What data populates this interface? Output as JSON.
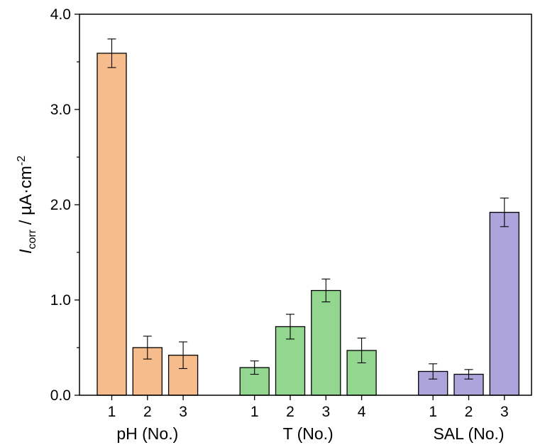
{
  "chart_data": {
    "type": "bar",
    "ylabel": {
      "symbol": "I",
      "subscript": "corr",
      "units": " / µA·cm",
      "superscript": "-2"
    },
    "ylim": [
      0,
      4.0
    ],
    "yticks": [
      "0.0",
      "1.0",
      "2.0",
      "3.0",
      "4.0"
    ],
    "ytick_values": [
      0,
      1,
      2,
      3,
      4
    ],
    "groups": [
      {
        "label": "pH (No.)",
        "color": "#f7bc8c",
        "categories": [
          "1",
          "2",
          "3"
        ],
        "values": [
          3.59,
          0.5,
          0.42
        ],
        "errors": [
          0.15,
          0.12,
          0.14
        ]
      },
      {
        "label": "T (No.)",
        "color": "#93d690",
        "categories": [
          "1",
          "2",
          "3",
          "4"
        ],
        "values": [
          0.29,
          0.72,
          1.1,
          0.47
        ],
        "errors": [
          0.07,
          0.13,
          0.12,
          0.13
        ]
      },
      {
        "label": "SAL (No.)",
        "color": "#ada4dc",
        "categories": [
          "1",
          "2",
          "3"
        ],
        "values": [
          0.25,
          0.22,
          1.92
        ],
        "errors": [
          0.08,
          0.05,
          0.15
        ]
      }
    ],
    "grid": false,
    "legend": "none"
  }
}
